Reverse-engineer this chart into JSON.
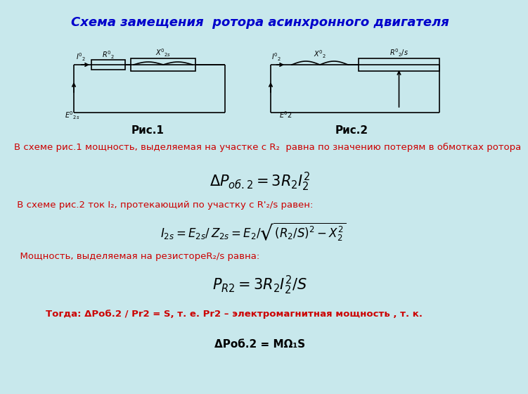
{
  "title": "Схема замещения  ротора асинхронного двигателя",
  "title_color": "#0000CC",
  "bg_color": "#C8E8EC",
  "text_color": "#000000",
  "red_color": "#CC0000",
  "fig1_label": "Рис.1",
  "fig2_label": "Рис.2",
  "text1": "В схеме рис.1 мощность, выделяемая на участке с R₂  равна по значению потерям в обмотках ротора",
  "text2": " В схеме рис.2 ток I₂, протекающий по участку с R'₂/s равен:",
  "text3": "  Мощность, выделяемая на резистореR₂/s равна:",
  "text4": "Тогда: ΔРоб.2 / Рr2 = S, т. е. Рr2 – электромагнитная мощность , т. к.",
  "text5": "ΔРоб.2 = МΩ₁S"
}
